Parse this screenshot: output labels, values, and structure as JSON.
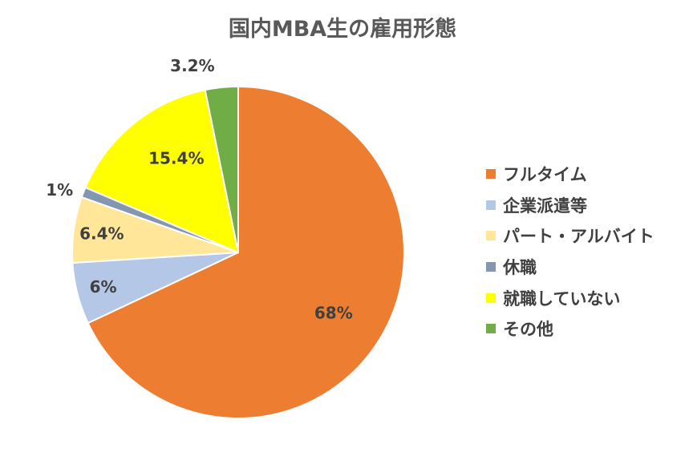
{
  "chart_data": {
    "type": "pie",
    "title": "国内MBA生の雇用形態",
    "legend_position": "right",
    "slices": [
      {
        "label": "フルタイム",
        "value": 68,
        "display": "68%",
        "color": "#ED7D31"
      },
      {
        "label": "企業派遣等",
        "value": 6,
        "display": "6%",
        "color": "#B4C7E7"
      },
      {
        "label": "パート・アルバイト",
        "value": 6.4,
        "display": "6.4%",
        "color": "#FFE699"
      },
      {
        "label": "休職",
        "value": 1,
        "display": "1%",
        "color": "#8497B0"
      },
      {
        "label": "就職していない",
        "value": 15.4,
        "display": "15.4%",
        "color": "#FFFF00"
      },
      {
        "label": "その他",
        "value": 3.2,
        "display": "3.2%",
        "color": "#70AD47"
      }
    ]
  }
}
